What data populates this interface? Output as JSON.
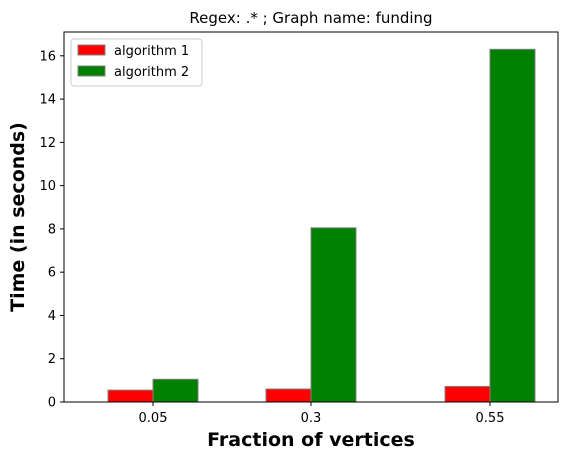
{
  "chart_data": {
    "type": "bar",
    "title": "Regex: .* ; Graph name: funding",
    "xlabel": "Fraction of vertices",
    "ylabel": "Time (in seconds)",
    "categories": [
      "0.05",
      "0.3",
      "0.55"
    ],
    "series": [
      {
        "name": "algorithm 1",
        "color": "#ff0000",
        "values": [
          0.55,
          0.6,
          0.72
        ]
      },
      {
        "name": "algorithm 2",
        "color": "#008000",
        "values": [
          1.05,
          8.05,
          16.3
        ]
      }
    ],
    "ylim": [
      0,
      17.1
    ],
    "yticks": [
      0,
      2,
      4,
      6,
      8,
      10,
      12,
      14,
      16
    ],
    "grid": false,
    "legend_position": "top-left",
    "bar_edge_color": "#808080"
  }
}
